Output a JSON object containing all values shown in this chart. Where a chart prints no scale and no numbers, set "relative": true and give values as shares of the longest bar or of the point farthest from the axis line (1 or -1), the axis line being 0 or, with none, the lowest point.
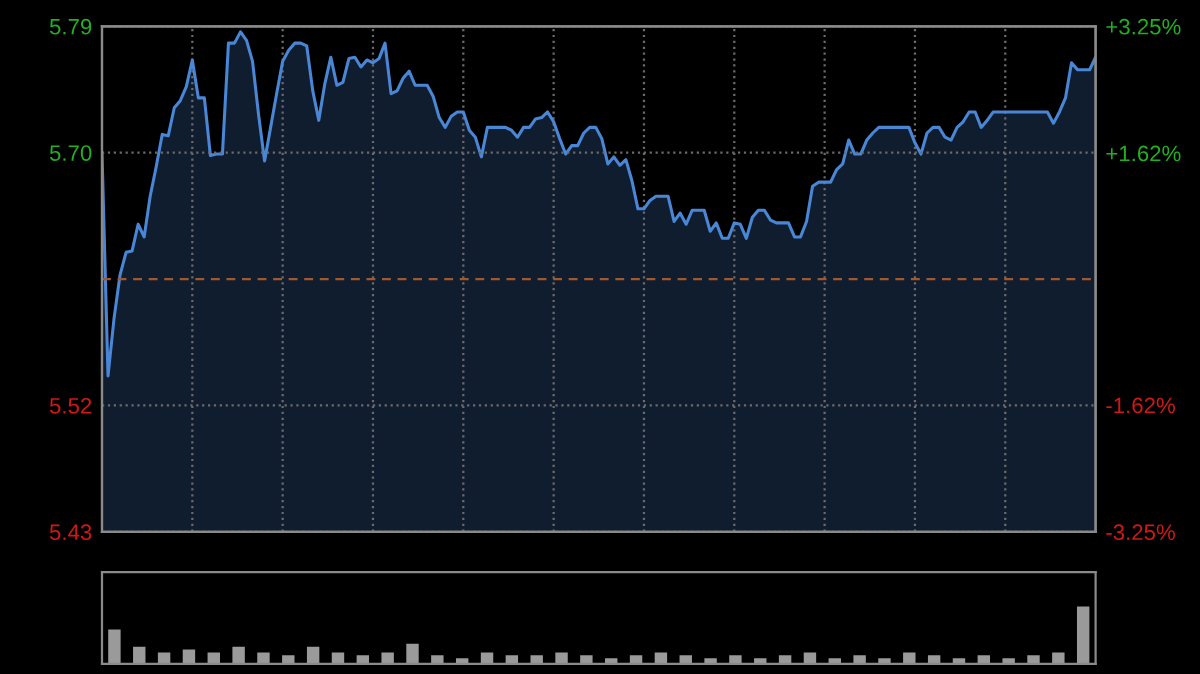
{
  "chart_data": [
    {
      "type": "area",
      "categories": [
        null,
        null,
        null,
        null,
        null,
        null,
        null,
        null,
        null,
        null,
        null,
        null,
        null,
        null,
        null,
        null,
        null,
        null,
        null,
        null,
        null,
        null,
        null,
        null,
        null,
        null,
        null,
        null,
        null,
        null,
        null,
        null,
        null,
        null,
        null,
        null,
        null,
        null,
        null,
        null,
        null,
        null,
        null,
        null,
        null,
        null,
        null,
        null,
        null,
        null,
        null,
        null,
        null,
        null,
        null,
        null,
        null,
        null,
        null,
        null,
        null,
        null,
        null,
        null,
        null,
        null,
        null,
        null,
        null,
        null,
        null,
        null,
        null,
        null,
        null,
        null,
        null,
        null,
        null,
        null,
        null,
        null,
        null,
        null,
        null,
        null,
        null,
        null,
        null,
        null,
        null,
        null,
        null,
        null,
        null,
        null,
        null,
        null,
        null,
        null,
        null,
        null,
        null,
        null,
        null,
        null,
        null,
        null,
        null,
        null,
        null,
        null,
        null,
        null,
        null,
        null,
        null,
        null,
        null,
        null,
        null,
        null,
        null,
        null,
        null,
        null,
        null,
        null,
        null,
        null,
        null,
        null,
        null,
        null,
        null,
        null,
        null,
        null,
        null,
        null,
        null,
        null,
        null,
        null,
        null,
        null,
        null,
        null,
        null,
        null,
        null,
        null,
        null,
        null,
        null,
        null,
        null,
        null,
        null,
        null,
        null,
        null,
        null,
        null,
        null,
        null
      ],
      "series": [
        {
          "color": "#4a86d6",
          "values": [
            5.7,
            5.541,
            5.582,
            5.613,
            5.629,
            5.63,
            5.649,
            5.64,
            5.669,
            5.69,
            5.713,
            5.712,
            5.732,
            5.737,
            5.747,
            5.766,
            5.739,
            5.739,
            5.698,
            5.699,
            5.699,
            5.778,
            5.778,
            5.786,
            5.78,
            5.765,
            5.727,
            5.694,
            5.718,
            5.742,
            5.765,
            5.773,
            5.778,
            5.778,
            5.776,
            5.744,
            5.723,
            5.749,
            5.768,
            5.748,
            5.75,
            5.767,
            5.768,
            5.761,
            5.766,
            5.764,
            5.767,
            5.778,
            5.742,
            5.744,
            5.753,
            5.758,
            5.748,
            5.748,
            5.748,
            5.74,
            5.725,
            5.718,
            5.726,
            5.729,
            5.729,
            5.716,
            5.711,
            5.697,
            5.718,
            5.718,
            5.718,
            5.718,
            5.716,
            5.711,
            5.718,
            5.718,
            5.724,
            5.725,
            5.729,
            5.722,
            5.71,
            5.699,
            5.705,
            5.705,
            5.714,
            5.718,
            5.718,
            5.71,
            5.692,
            5.697,
            5.691,
            5.695,
            5.68,
            5.66,
            5.66,
            5.666,
            5.669,
            5.669,
            5.669,
            5.651,
            5.657,
            5.649,
            5.659,
            5.659,
            5.659,
            5.644,
            5.65,
            5.639,
            5.639,
            5.65,
            5.649,
            5.639,
            5.654,
            5.659,
            5.659,
            5.652,
            5.65,
            5.65,
            5.65,
            5.64,
            5.64,
            5.651,
            5.676,
            5.679,
            5.679,
            5.679,
            5.688,
            5.692,
            5.709,
            5.699,
            5.699,
            5.709,
            5.714,
            5.718,
            5.718,
            5.718,
            5.718,
            5.718,
            5.718,
            5.707,
            5.699,
            5.714,
            5.718,
            5.718,
            5.711,
            5.709,
            5.718,
            5.722,
            5.729,
            5.729,
            5.718,
            5.723,
            5.729,
            5.729,
            5.729,
            5.729,
            5.729,
            5.729,
            5.729,
            5.729,
            5.729,
            5.729,
            5.721,
            5.729,
            5.739,
            5.764,
            5.759,
            5.759,
            5.759,
            5.768
          ]
        }
      ],
      "ylim": [
        5.43,
        5.79
      ],
      "yticks": [
        {
          "value": 5.43,
          "label": "5.43"
        },
        {
          "value": 5.52,
          "label": "5.52"
        },
        {
          "value": 5.7,
          "label": "5.70"
        },
        {
          "value": 5.79,
          "label": "5.79"
        }
      ],
      "y2lim": [
        -3.25,
        3.25
      ],
      "y2ticks": [
        {
          "value": 3.25,
          "label": "+3.25%"
        },
        {
          "value": 1.62,
          "label": "+1.62%"
        },
        {
          "value": -1.62,
          "label": "-1.62%"
        },
        {
          "value": -3.25,
          "label": "-3.25%"
        }
      ],
      "ref_lines": [
        {
          "axis": "y",
          "value": 5.61,
          "color": "#a0582e",
          "line_style": "dashed"
        }
      ],
      "grid": true
    },
    {
      "type": "bar",
      "relative": true,
      "categories": [
        null,
        null,
        null,
        null,
        null,
        null,
        null,
        null,
        null,
        null,
        null,
        null,
        null,
        null,
        null,
        null,
        null,
        null,
        null,
        null,
        null,
        null,
        null,
        null,
        null,
        null,
        null,
        null,
        null,
        null,
        null,
        null,
        null,
        null,
        null,
        null,
        null,
        null,
        null,
        null
      ],
      "series": [
        {
          "color": "#9a9a9a",
          "values": [
            0.6,
            0.3,
            0.2,
            0.25,
            0.2,
            0.3,
            0.2,
            0.15,
            0.3,
            0.2,
            0.15,
            0.2,
            0.35,
            0.15,
            0.1,
            0.2,
            0.15,
            0.15,
            0.2,
            0.15,
            0.1,
            0.15,
            0.2,
            0.15,
            0.1,
            0.15,
            0.1,
            0.15,
            0.2,
            0.1,
            0.15,
            0.1,
            0.2,
            0.15,
            0.1,
            0.15,
            0.1,
            0.15,
            0.2,
            1.0
          ]
        }
      ]
    }
  ]
}
